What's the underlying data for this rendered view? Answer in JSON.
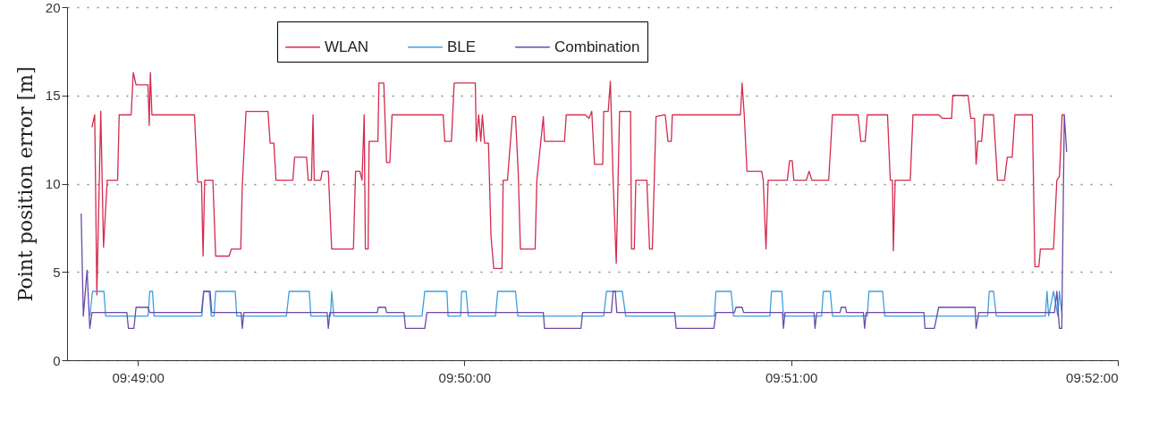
{
  "chart_data": {
    "type": "line",
    "ylabel": "Point position error [m]",
    "xlim": [
      9.81306,
      9.86667
    ],
    "xticks": [
      {
        "value": 9.81667,
        "label": "09:49:00"
      },
      {
        "value": 9.83333,
        "label": "09:50:00"
      },
      {
        "value": 9.85,
        "label": "09:51:00"
      },
      {
        "value": 9.86667,
        "label": "09:52:00"
      }
    ],
    "ylim": [
      0,
      20
    ],
    "yticks": [
      0,
      5,
      10,
      15,
      20
    ],
    "grid": "y",
    "legend": "top",
    "line_style": "solid",
    "marker": "none",
    "series": [
      {
        "name": "WLAN",
        "color": "#d42a4e",
        "x": [
          9.81433,
          9.81447,
          9.81458,
          9.81478,
          9.81492,
          9.81511,
          9.81564,
          9.81572,
          9.81633,
          9.81644,
          9.81658,
          9.81719,
          9.81725,
          9.81731,
          9.81739,
          9.81956,
          9.81972,
          9.81992,
          9.82,
          9.82008,
          9.8205,
          9.82064,
          9.82133,
          9.82144,
          9.82192,
          9.822,
          9.82219,
          9.82331,
          9.82342,
          9.82361,
          9.82372,
          9.82458,
          9.82467,
          9.82528,
          9.82536,
          9.82553,
          9.82561,
          9.82567,
          9.826,
          9.82608,
          9.82639,
          9.82656,
          9.82767,
          9.82778,
          9.828,
          9.82811,
          9.82822,
          9.82828,
          9.82842,
          9.82847,
          9.82892,
          9.82897,
          9.82922,
          9.82936,
          9.82953,
          9.82964,
          9.83225,
          9.83233,
          9.83267,
          9.83281,
          9.83389,
          9.83394,
          9.83406,
          9.83417,
          9.83425,
          9.83436,
          9.83456,
          9.83469,
          9.83483,
          9.83525,
          9.83531,
          9.83553,
          9.83578,
          9.83594,
          9.83608,
          9.83619,
          9.83694,
          9.83703,
          9.83736,
          9.83742,
          9.83844,
          9.83853,
          9.8395,
          9.83969,
          9.83983,
          9.83997,
          9.84039,
          9.84044,
          9.84067,
          9.84078,
          9.84092,
          9.84108,
          9.84125,
          9.84181,
          9.84186,
          9.842,
          9.84208,
          9.84264,
          9.84278,
          9.84292,
          9.84311,
          9.84358,
          9.84372,
          9.84389,
          9.84394,
          9.84742,
          9.8475,
          9.84761,
          9.84775,
          9.8485,
          9.84858,
          9.84872,
          9.84883,
          9.84981,
          9.84992,
          9.85006,
          9.85014,
          9.85078,
          9.85092,
          9.85106,
          9.85192,
          9.85211,
          9.85342,
          9.85356,
          9.85378,
          9.85389,
          9.85492,
          9.85506,
          9.85517,
          9.85522,
          9.85531,
          9.85608,
          9.85622,
          9.85753,
          9.85772,
          9.85819,
          9.85825,
          9.85903,
          9.85917,
          9.85936,
          9.85944,
          9.85953,
          9.85972,
          9.85983,
          9.86033,
          9.86053,
          9.86089,
          9.86103,
          9.86128,
          9.86142,
          9.86231,
          9.86244,
          9.86264,
          9.86272,
          9.86339,
          9.86356,
          9.86369,
          9.86383,
          9.86394
        ],
        "values": [
          13.2,
          13.9,
          3.7,
          14.1,
          6.4,
          10.2,
          10.2,
          13.9,
          13.9,
          16.3,
          15.6,
          15.6,
          13.3,
          16.3,
          13.9,
          13.9,
          10.1,
          10.1,
          5.9,
          10.2,
          10.2,
          5.9,
          5.9,
          6.3,
          6.3,
          9.9,
          14.1,
          14.1,
          12.3,
          12.3,
          10.2,
          10.2,
          11.5,
          11.5,
          10.2,
          10.2,
          13.9,
          10.2,
          10.2,
          10.7,
          10.7,
          6.3,
          6.3,
          10.7,
          10.7,
          10.2,
          13.9,
          6.3,
          6.3,
          12.4,
          12.4,
          15.7,
          15.7,
          11.2,
          11.2,
          13.9,
          13.9,
          12.4,
          12.4,
          15.7,
          15.7,
          12.4,
          13.9,
          12.4,
          13.9,
          12.3,
          12.3,
          7.0,
          5.2,
          5.2,
          10.2,
          10.2,
          13.8,
          13.8,
          10.6,
          6.3,
          6.3,
          10.2,
          13.8,
          12.4,
          12.4,
          13.9,
          13.9,
          13.7,
          14.1,
          11.1,
          11.1,
          14.1,
          14.1,
          15.8,
          10.2,
          5.5,
          14.1,
          14.1,
          6.3,
          6.3,
          10.2,
          10.2,
          6.3,
          6.3,
          13.8,
          13.9,
          12.4,
          12.4,
          13.9,
          13.9,
          15.7,
          13.9,
          10.7,
          10.7,
          10.2,
          6.3,
          10.2,
          10.2,
          11.3,
          11.3,
          10.2,
          10.2,
          10.7,
          10.2,
          10.2,
          13.9,
          13.9,
          12.4,
          12.4,
          13.9,
          13.9,
          10.2,
          10.2,
          6.2,
          10.2,
          10.2,
          13.9,
          13.9,
          13.7,
          13.7,
          15.0,
          15.0,
          13.7,
          13.7,
          11.1,
          12.4,
          12.4,
          13.9,
          13.9,
          10.2,
          10.2,
          11.5,
          11.5,
          13.9,
          13.9,
          5.3,
          5.3,
          6.3,
          6.3,
          10.2,
          10.4,
          13.9,
          13.9
        ]
      },
      {
        "name": "BLE",
        "color": "#3d9fe3",
        "x": [
          9.81422,
          9.81436,
          9.81494,
          9.81503,
          9.81719,
          9.81728,
          9.81742,
          9.8175,
          9.81994,
          9.82003,
          9.82031,
          9.82042,
          9.82056,
          9.82064,
          9.82164,
          9.82172,
          9.82425,
          9.82439,
          9.82542,
          9.8255,
          9.8265,
          9.82656,
          9.82667,
          9.83117,
          9.83131,
          9.83244,
          9.8325,
          9.83314,
          9.83319,
          9.83342,
          9.83353,
          9.83492,
          9.83503,
          9.83594,
          9.83606,
          9.84044,
          9.84058,
          9.84139,
          9.84156,
          9.84608,
          9.84617,
          9.84694,
          9.84706,
          9.84892,
          9.849,
          9.84953,
          9.84961,
          9.85156,
          9.85164,
          9.852,
          9.85211,
          9.85389,
          9.85397,
          9.85467,
          9.85478,
          9.86003,
          9.86011,
          9.86033,
          9.86047,
          9.86297,
          9.86306,
          9.86314,
          9.86339,
          9.86361,
          9.86369,
          9.86383
        ],
        "values": [
          2.5,
          3.9,
          3.9,
          2.5,
          2.5,
          3.9,
          3.9,
          2.5,
          2.5,
          3.9,
          3.9,
          2.5,
          2.5,
          3.9,
          3.9,
          2.5,
          2.5,
          3.9,
          3.9,
          2.5,
          2.5,
          3.9,
          2.5,
          2.5,
          3.9,
          3.9,
          2.5,
          2.5,
          3.9,
          3.9,
          2.5,
          2.5,
          3.9,
          3.9,
          2.5,
          2.5,
          3.9,
          3.9,
          2.5,
          2.5,
          3.9,
          3.9,
          2.5,
          2.5,
          3.9,
          3.9,
          2.5,
          2.5,
          3.9,
          3.9,
          2.5,
          2.5,
          3.9,
          3.9,
          2.5,
          2.5,
          3.9,
          3.9,
          2.5,
          2.5,
          3.9,
          2.5,
          3.9,
          2.5,
          3.9,
          2.5
        ]
      },
      {
        "name": "Combination",
        "color": "#6b4aa6",
        "x": [
          9.81378,
          9.81389,
          9.81408,
          9.81422,
          9.81433,
          9.81611,
          9.81619,
          9.81647,
          9.81658,
          9.81719,
          9.81728,
          9.81992,
          9.82003,
          9.82036,
          9.82044,
          9.82194,
          9.822,
          9.82208,
          9.82633,
          9.82639,
          9.82647,
          9.82889,
          9.82894,
          9.82931,
          9.82936,
          9.83025,
          9.83033,
          9.83131,
          9.83142,
          9.83736,
          9.83742,
          9.83928,
          9.83936,
          9.84083,
          9.84092,
          9.84103,
          9.84111,
          9.84406,
          9.84414,
          9.84606,
          9.84617,
          9.84711,
          9.84719,
          9.8475,
          9.84758,
          9.84956,
          9.84961,
          9.84969,
          9.85117,
          9.85122,
          9.85131,
          9.8525,
          9.85256,
          9.85278,
          9.85283,
          9.85369,
          9.85375,
          9.85383,
          9.85678,
          9.85683,
          9.85731,
          9.85753,
          9.85939,
          9.85944,
          9.85958,
          9.86344,
          9.86356,
          9.86369,
          9.86381,
          9.86394,
          9.86406
        ],
        "values": [
          8.3,
          2.5,
          5.1,
          1.8,
          2.7,
          2.7,
          1.8,
          1.8,
          3.0,
          3.0,
          2.7,
          2.7,
          3.9,
          3.9,
          2.7,
          2.7,
          1.8,
          2.7,
          2.7,
          1.8,
          2.7,
          2.7,
          3.0,
          3.0,
          2.7,
          2.7,
          1.8,
          1.8,
          2.7,
          2.7,
          1.8,
          1.8,
          2.7,
          2.7,
          3.9,
          3.9,
          2.7,
          2.7,
          1.8,
          1.8,
          2.7,
          2.7,
          3.0,
          3.0,
          2.7,
          2.7,
          1.8,
          2.7,
          2.7,
          1.8,
          2.7,
          2.7,
          3.0,
          3.0,
          2.7,
          2.7,
          1.8,
          2.7,
          2.7,
          1.8,
          1.8,
          3.0,
          3.0,
          1.8,
          2.7,
          2.7,
          3.9,
          1.8,
          1.8,
          13.9,
          11.8
        ]
      }
    ]
  }
}
